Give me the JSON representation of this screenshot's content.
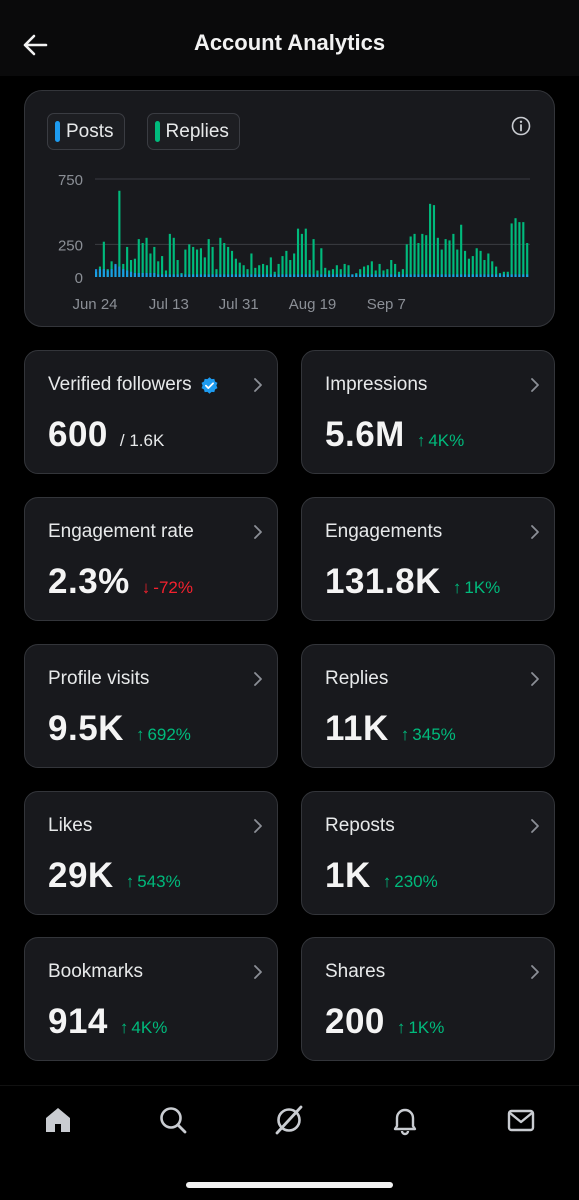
{
  "header": {
    "title": "Account Analytics",
    "back_icon": "arrow-left-icon"
  },
  "chart": {
    "legend": [
      {
        "label": "Posts",
        "color": "#1d9bf0"
      },
      {
        "label": "Replies",
        "color": "#00ba7c"
      }
    ],
    "info_icon": "info-circle-icon"
  },
  "chart_data": {
    "type": "bar",
    "y_ticks": [
      0,
      250,
      750
    ],
    "ylim": [
      0,
      800
    ],
    "x_tick_labels": [
      "Jun 24",
      "Jul 13",
      "Jul 31",
      "Aug 19",
      "Sep 7"
    ],
    "x_tick_index": [
      0,
      19,
      37,
      56,
      75
    ],
    "grid": true,
    "series": [
      {
        "name": "Replies",
        "color": "#00ba7c",
        "values": [
          40,
          80,
          270,
          60,
          120,
          90,
          660,
          100,
          230,
          130,
          140,
          290,
          260,
          300,
          180,
          230,
          120,
          160,
          50,
          330,
          300,
          130,
          30,
          210,
          250,
          230,
          210,
          220,
          150,
          290,
          230,
          60,
          300,
          260,
          230,
          200,
          140,
          110,
          90,
          60,
          180,
          70,
          90,
          100,
          90,
          150,
          40,
          100,
          160,
          200,
          130,
          180,
          370,
          330,
          370,
          130,
          290,
          50,
          220,
          70,
          50,
          60,
          90,
          60,
          100,
          90,
          20,
          30,
          60,
          80,
          90,
          120,
          50,
          100,
          50,
          60,
          130,
          100,
          40,
          60,
          250,
          310,
          330,
          260,
          330,
          320,
          560,
          550,
          300,
          210,
          290,
          280,
          330,
          210,
          400,
          200,
          140,
          160,
          220,
          200,
          130,
          180,
          120,
          80,
          30,
          40,
          40,
          410,
          450,
          420,
          420,
          260
        ]
      },
      {
        "name": "Posts",
        "color": "#1d9bf0",
        "values": [
          60,
          60,
          60,
          50,
          60,
          100,
          80,
          60,
          50,
          40,
          30,
          30,
          30,
          30,
          30,
          30,
          20,
          20,
          20,
          20,
          20,
          20,
          20,
          20,
          20,
          20,
          20,
          20,
          20,
          20,
          20,
          20,
          20,
          20,
          20,
          20,
          20,
          20,
          20,
          20,
          20,
          20,
          20,
          20,
          20,
          20,
          20,
          20,
          20,
          20,
          20,
          20,
          20,
          20,
          20,
          20,
          20,
          20,
          20,
          20,
          20,
          20,
          20,
          20,
          20,
          20,
          20,
          20,
          20,
          20,
          20,
          20,
          20,
          20,
          20,
          20,
          20,
          20,
          20,
          20,
          20,
          20,
          20,
          20,
          20,
          20,
          20,
          20,
          20,
          20,
          20,
          20,
          20,
          20,
          20,
          20,
          20,
          20,
          20,
          20,
          20,
          20,
          20,
          20,
          20,
          20,
          20,
          20,
          20,
          20,
          20,
          20
        ]
      }
    ]
  },
  "stats": [
    {
      "label": "Verified followers",
      "value": "600",
      "sub": "/ 1.6K",
      "change": "",
      "direction": "none",
      "verified_icon": "verified-badge-icon"
    },
    {
      "label": "Impressions",
      "value": "5.6M",
      "sub": "",
      "change": "4K%",
      "direction": "up"
    },
    {
      "label": "Engagement rate",
      "value": "2.3%",
      "sub": "",
      "change": "-72%",
      "direction": "down"
    },
    {
      "label": "Engagements",
      "value": "131.8K",
      "sub": "",
      "change": "1K%",
      "direction": "up"
    },
    {
      "label": "Profile visits",
      "value": "9.5K",
      "sub": "",
      "change": "692%",
      "direction": "up"
    },
    {
      "label": "Replies",
      "value": "11K",
      "sub": "",
      "change": "345%",
      "direction": "up"
    },
    {
      "label": "Likes",
      "value": "29K",
      "sub": "",
      "change": "543%",
      "direction": "up"
    },
    {
      "label": "Reposts",
      "value": "1K",
      "sub": "",
      "change": "230%",
      "direction": "up"
    },
    {
      "label": "Bookmarks",
      "value": "914",
      "sub": "",
      "change": "4K%",
      "direction": "up"
    },
    {
      "label": "Shares",
      "value": "200",
      "sub": "",
      "change": "1K%",
      "direction": "up"
    }
  ],
  "arrows": {
    "up": "↑",
    "down": "↓"
  },
  "colors": {
    "up": "#00ba7c",
    "down": "#f4212e",
    "card": "#18191d",
    "border": "#33353a"
  },
  "tabbar": {
    "items": [
      {
        "icon": "home-icon"
      },
      {
        "icon": "search-icon"
      },
      {
        "icon": "grok-icon"
      },
      {
        "icon": "bell-icon"
      },
      {
        "icon": "mail-icon"
      }
    ]
  }
}
